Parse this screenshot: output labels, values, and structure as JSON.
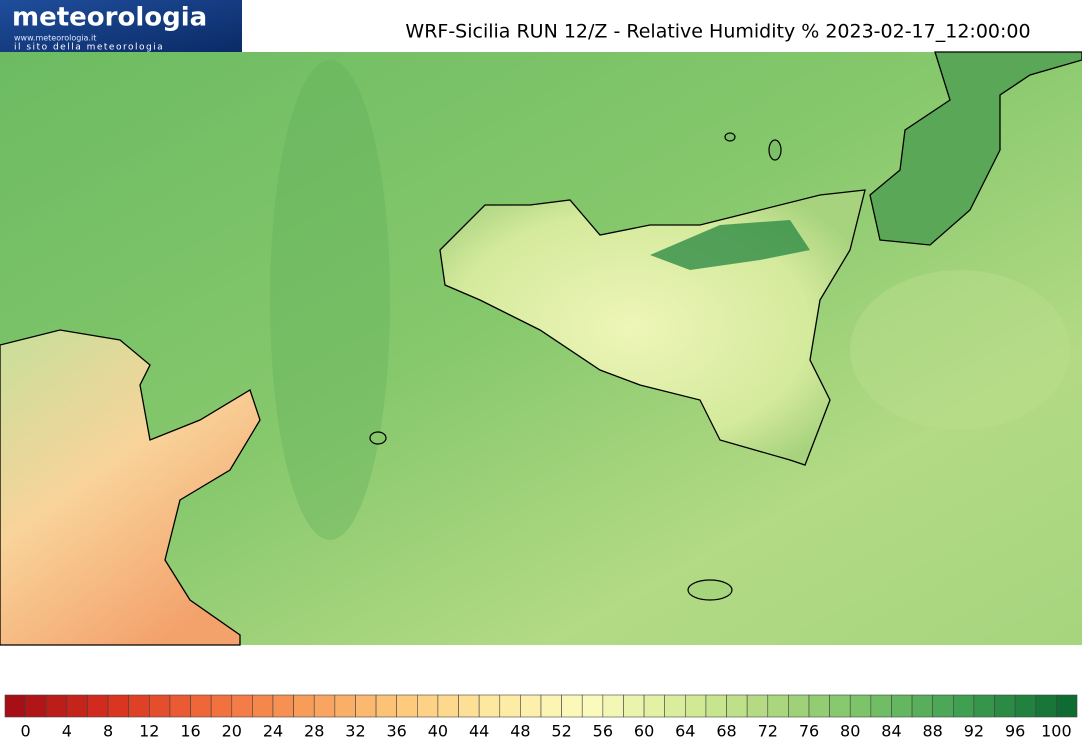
{
  "header": {
    "logo": "meteorologia",
    "logo_url": "www.meteorologia.it",
    "logo_tagline": "il sito della meteorologia",
    "title": "WRF-Sicilia RUN 12/Z - Relative Humidity % 2023-02-17_12:00:00"
  },
  "colorbar": {
    "ticks": [
      0,
      4,
      8,
      12,
      16,
      20,
      24,
      28,
      32,
      36,
      40,
      44,
      48,
      52,
      56,
      60,
      64,
      68,
      72,
      76,
      80,
      84,
      88,
      92,
      96,
      100
    ],
    "colors": [
      "#a50f15",
      "#d7301f",
      "#f16a3a",
      "#f89b59",
      "#fdc77a",
      "#fde9a0",
      "#fbfbbf",
      "#d6ec98",
      "#a9d67c",
      "#74bf66",
      "#3b9d4f",
      "#0e6b32"
    ]
  }
}
